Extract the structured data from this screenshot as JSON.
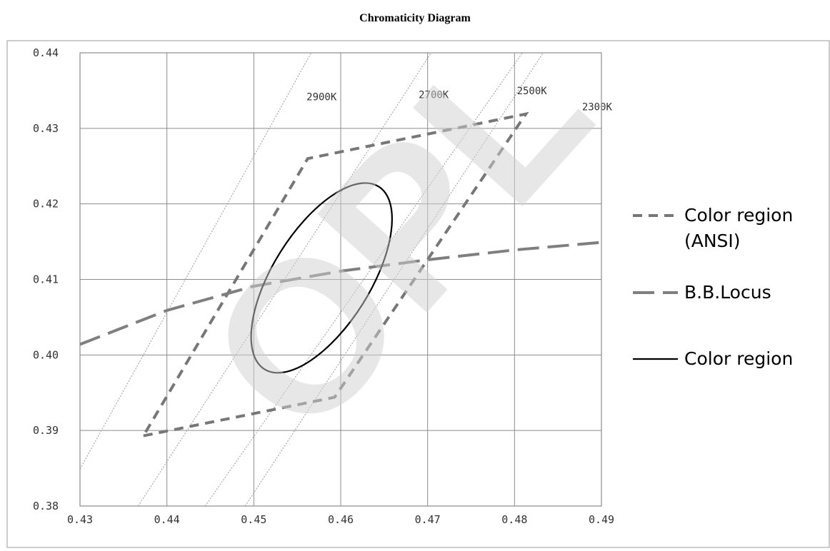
{
  "title": "Chromaticity Diagram",
  "watermark": "OPL",
  "chart_data": {
    "type": "line",
    "title": "Chromaticity Diagram",
    "xlabel": "",
    "ylabel": "",
    "xlim": [
      0.43,
      0.49
    ],
    "ylim": [
      0.38,
      0.44
    ],
    "grid": true,
    "x_ticks": [
      "0.43",
      "0.44",
      "0.45",
      "0.46",
      "0.47",
      "0.48",
      "0.49"
    ],
    "y_ticks": [
      "0.38",
      "0.39",
      "0.40",
      "0.41",
      "0.42",
      "0.43",
      "0.44"
    ],
    "legend_position": "right",
    "series": [
      {
        "name": "Color region (ANSI)",
        "legend_lines": [
          "Color region",
          "(ANSI)"
        ],
        "style": "dashed",
        "color": "#777777",
        "points": [
          [
            0.4373,
            0.3893
          ],
          [
            0.4593,
            0.3944
          ],
          [
            0.4813,
            0.4319
          ],
          [
            0.4562,
            0.426
          ],
          [
            0.4373,
            0.3893
          ]
        ]
      },
      {
        "name": "B.B.Locus",
        "legend_lines": [
          "B.B.Locus"
        ],
        "style": "long-dash",
        "color": "#7f7f7f",
        "points": [
          [
            0.43,
            0.4014
          ],
          [
            0.44,
            0.4059
          ],
          [
            0.45,
            0.4091
          ],
          [
            0.46,
            0.4111
          ],
          [
            0.47,
            0.4126
          ],
          [
            0.48,
            0.4139
          ],
          [
            0.49,
            0.4149
          ]
        ]
      },
      {
        "name": "Color region",
        "legend_lines": [
          "Color region"
        ],
        "style": "solid",
        "color": "#000000",
        "ellipse": {
          "center": [
            0.4578,
            0.4102
          ],
          "half_axes": [
            0.0124,
            0.0056
          ],
          "angle_deg": 58
        }
      }
    ],
    "isotherms": [
      {
        "label": "2900K",
        "from": [
          0.43,
          0.3849
        ],
        "to": [
          0.4566,
          0.44
        ]
      },
      {
        "label": "2700K",
        "from": [
          0.4367,
          0.38
        ],
        "to": [
          0.4704,
          0.44
        ]
      },
      {
        "label": "2500K",
        "from": [
          0.4444,
          0.38
        ],
        "to": [
          0.4809,
          0.44
        ]
      },
      {
        "label": "2300K",
        "from": [
          0.449,
          0.38
        ],
        "to": [
          0.4833,
          0.44
        ]
      }
    ]
  }
}
